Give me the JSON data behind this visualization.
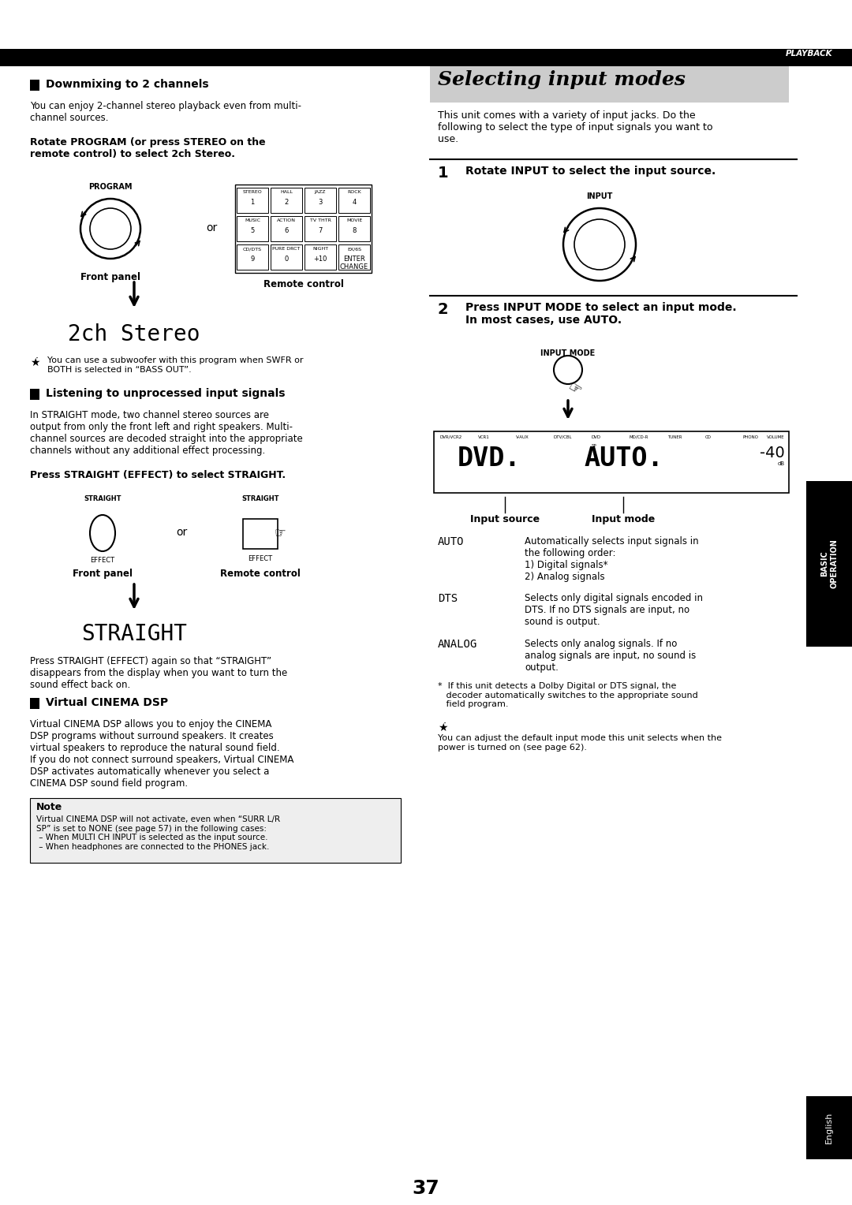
{
  "bg_color": "#ffffff",
  "page_num": "37",
  "header_text": "PLAYBACK",
  "sections": {
    "downmixing_title": "Downmixing to 2 channels",
    "downmixing_body": "You can enjoy 2-channel stereo playback even from multi-\nchannel sources.",
    "downmixing_instr": "Rotate PROGRAM (or press STEREO on the\nremote control) to select 2ch Stereo.",
    "stereo_display": "2ch Stereo",
    "subwoofer_note": "You can use a subwoofer with this program when SWFR or\nBOTH is selected in “BASS OUT”.",
    "listening_title": "Listening to unprocessed input signals",
    "listening_body": "In STRAIGHT mode, two channel stereo sources are\noutput from only the front left and right speakers. Multi-\nchannel sources are decoded straight into the appropriate\nchannels without any additional effect processing.",
    "straight_instr": "Press STRAIGHT (EFFECT) to select STRAIGHT.",
    "straight_display": "STRAIGHT",
    "straight_note": "Press STRAIGHT (EFFECT) again so that “STRAIGHT”\ndisappears from the display when you want to turn the\nsound effect back on.",
    "virtual_title": "Virtual CINEMA DSP",
    "virtual_body": "Virtual CINEMA DSP allows you to enjoy the CINEMA\nDSP programs without surround speakers. It creates\nvirtual speakers to reproduce the natural sound field.\nIf you do not connect surround speakers, Virtual CINEMA\nDSP activates automatically whenever you select a\nCINEMA DSP sound field program.",
    "note_body": "Virtual CINEMA DSP will not activate, even when “SURR L/R\nSP” is set to NONE (see page 57) in the following cases:\n – When MULTI CH INPUT is selected as the input source.\n – When headphones are connected to the PHONES jack.",
    "selecting_title": "Selecting input modes",
    "selecting_intro": "This unit comes with a variety of input jacks. Do the\nfollowing to select the type of input signals you want to\nuse.",
    "step1_text": "Rotate INPUT to select the input source.",
    "step2_text": "Press INPUT MODE to select an input mode.\nIn most cases, use AUTO.",
    "auto_label": "AUTO",
    "auto_desc": "Automatically selects input signals in\nthe following order:\n1) Digital signals*\n2) Analog signals",
    "dts_label": "DTS",
    "dts_desc": "Selects only digital signals encoded in\nDTS. If no DTS signals are input, no\nsound is output.",
    "analog_label": "ANALOG",
    "analog_desc": "Selects only analog signals. If no\nanalog signals are input, no sound is\noutput.",
    "footnote": "*  If this unit detects a Dolby Digital or DTS signal, the\n   decoder automatically switches to the appropriate sound\n   field program.",
    "tip_note": "You can adjust the default input mode this unit selects when the\npower is turned on (see page 62)."
  }
}
